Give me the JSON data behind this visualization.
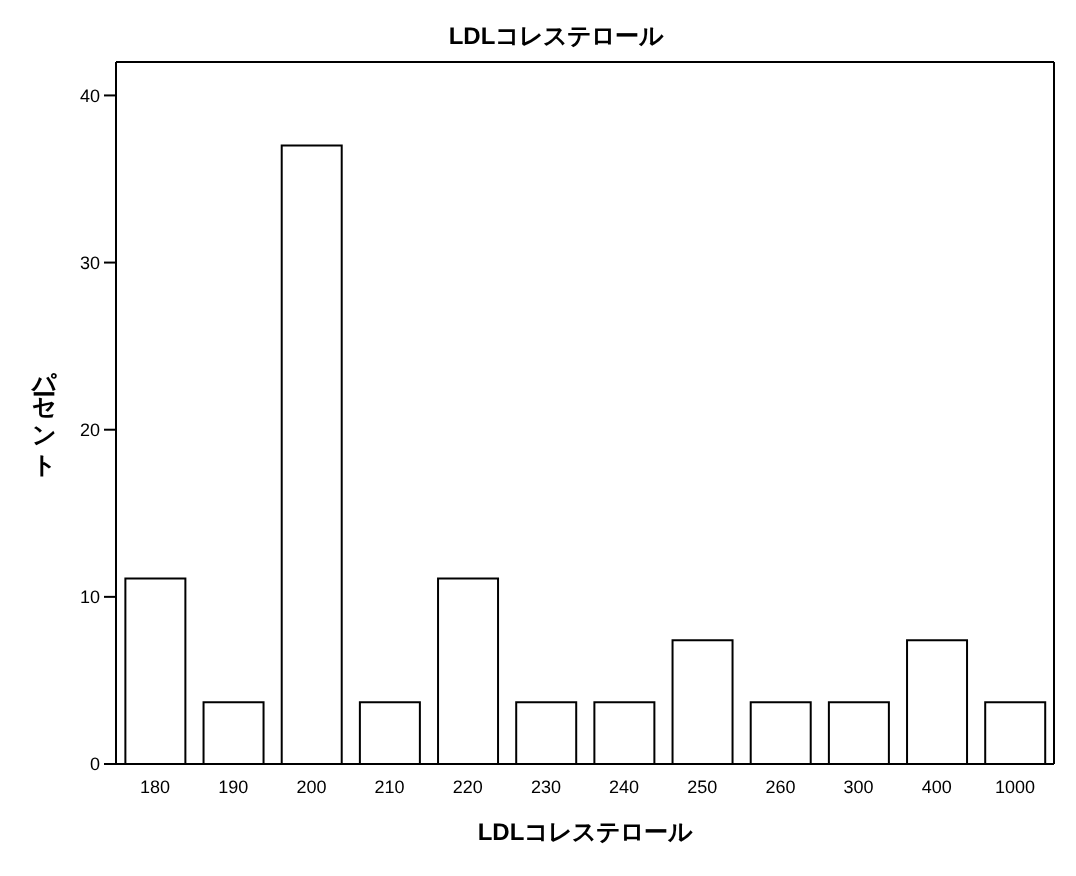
{
  "chart_data": {
    "type": "bar",
    "title": "LDLコレステロール",
    "xlabel": "LDLコレステロール",
    "ylabel": "パーセント",
    "categories": [
      "180",
      "190",
      "200",
      "210",
      "220",
      "230",
      "240",
      "250",
      "260",
      "300",
      "400",
      "1000"
    ],
    "values": [
      11.1,
      3.7,
      37.0,
      3.7,
      11.1,
      3.7,
      3.7,
      7.4,
      3.7,
      3.7,
      7.4,
      3.7
    ],
    "color": "#ffffff",
    "ylim": [
      0,
      42
    ],
    "yticks": [
      0,
      10,
      20,
      30,
      40
    ],
    "grid": false,
    "legend": false
  }
}
